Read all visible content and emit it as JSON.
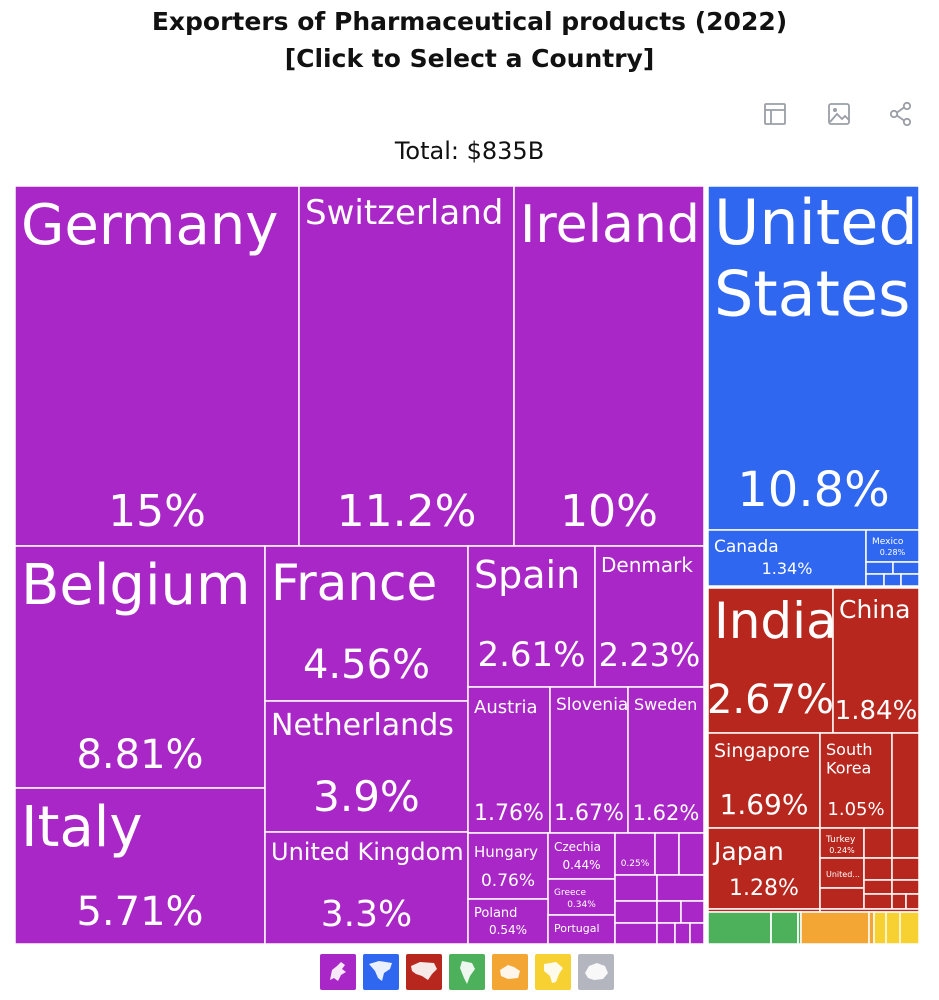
{
  "header": {
    "title_line1": "Exporters of Pharmaceutical products (2022)",
    "title_line2": "[Click to Select a Country]",
    "total": "Total: $835B"
  },
  "toolbar": [
    {
      "name": "table-view-button",
      "icon": "table-icon"
    },
    {
      "name": "download-image-button",
      "icon": "image-icon"
    },
    {
      "name": "share-button",
      "icon": "share-icon"
    }
  ],
  "colors": {
    "europe": "#a927c6",
    "north_america": "#2f67f0",
    "asia": "#b7271e",
    "south_america": "#4cb15a",
    "africa": "#f3a633",
    "oceania": "#f7d132",
    "antarctica": "#b4b6bf"
  },
  "chart_data": {
    "type": "treemap",
    "title": "Exporters of Pharmaceutical products (2022)",
    "total": "$835B",
    "unit": "% of world exports",
    "items": [
      {
        "name": "Germany",
        "value": 15,
        "label": "15%",
        "region": "europe"
      },
      {
        "name": "Switzerland",
        "value": 11.2,
        "label": "11.2%",
        "region": "europe"
      },
      {
        "name": "Ireland",
        "value": 10,
        "label": "10%",
        "region": "europe"
      },
      {
        "name": "Belgium",
        "value": 8.81,
        "label": "8.81%",
        "region": "europe"
      },
      {
        "name": "Italy",
        "value": 5.71,
        "label": "5.71%",
        "region": "europe"
      },
      {
        "name": "France",
        "value": 4.56,
        "label": "4.56%",
        "region": "europe"
      },
      {
        "name": "Netherlands",
        "value": 3.9,
        "label": "3.9%",
        "region": "europe"
      },
      {
        "name": "United Kingdom",
        "value": 3.3,
        "label": "3.3%",
        "region": "europe"
      },
      {
        "name": "Spain",
        "value": 2.61,
        "label": "2.61%",
        "region": "europe"
      },
      {
        "name": "Denmark",
        "value": 2.23,
        "label": "2.23%",
        "region": "europe"
      },
      {
        "name": "Austria",
        "value": 1.76,
        "label": "1.76%",
        "region": "europe"
      },
      {
        "name": "Slovenia",
        "value": 1.67,
        "label": "1.67%",
        "region": "europe"
      },
      {
        "name": "Sweden",
        "value": 1.62,
        "label": "1.62%",
        "region": "europe"
      },
      {
        "name": "Hungary",
        "value": 0.76,
        "label": "0.76%",
        "region": "europe"
      },
      {
        "name": "Czechia",
        "value": 0.44,
        "label": "0.44%",
        "region": "europe"
      },
      {
        "name": "Greece",
        "value": 0.34,
        "label": "0.34%",
        "region": "europe"
      },
      {
        "name": "Poland",
        "value": 0.54,
        "label": "0.54%",
        "region": "europe"
      },
      {
        "name": "Portugal",
        "value": null,
        "label": "",
        "region": "europe"
      },
      {
        "name": "",
        "value": 0.25,
        "label": "0.25%",
        "region": "europe"
      },
      {
        "name": "United States",
        "value": 10.8,
        "label": "10.8%",
        "region": "north_america"
      },
      {
        "name": "Canada",
        "value": 1.34,
        "label": "1.34%",
        "region": "north_america"
      },
      {
        "name": "Mexico",
        "value": 0.28,
        "label": "0.28%",
        "region": "north_america"
      },
      {
        "name": "India",
        "value": 2.67,
        "label": "2.67%",
        "region": "asia"
      },
      {
        "name": "China",
        "value": 1.84,
        "label": "1.84%",
        "region": "asia"
      },
      {
        "name": "Singapore",
        "value": 1.69,
        "label": "1.69%",
        "region": "asia"
      },
      {
        "name": "South Korea",
        "value": 1.05,
        "label": "1.05%",
        "region": "asia"
      },
      {
        "name": "Japan",
        "value": 1.28,
        "label": "1.28%",
        "region": "asia"
      },
      {
        "name": "Turkey",
        "value": 0.24,
        "label": "0.24%",
        "region": "asia"
      },
      {
        "name": "United...",
        "value": null,
        "label": "",
        "region": "asia"
      }
    ]
  },
  "continent_buttons": [
    {
      "name": "europe",
      "icon": "europe-icon"
    },
    {
      "name": "north-america",
      "icon": "north-america-icon"
    },
    {
      "name": "asia",
      "icon": "asia-icon"
    },
    {
      "name": "south-america",
      "icon": "south-america-icon"
    },
    {
      "name": "oceania",
      "icon": "oceania-icon"
    },
    {
      "name": "africa",
      "icon": "africa-icon"
    },
    {
      "name": "antarctica",
      "icon": "antarctica-icon"
    }
  ]
}
